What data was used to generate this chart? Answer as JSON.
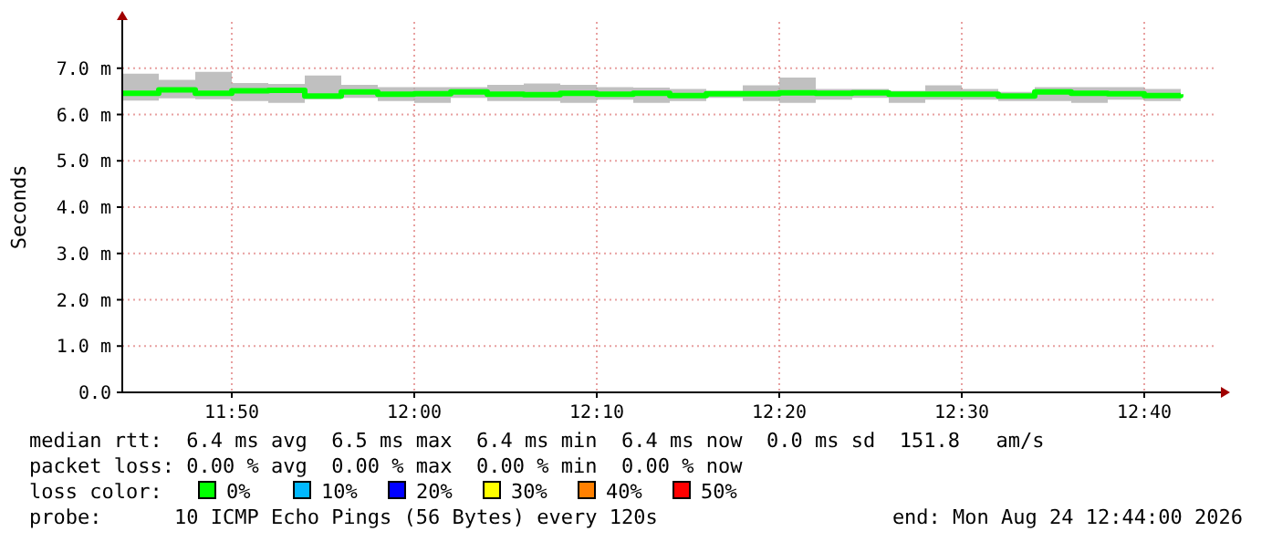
{
  "chart_data": {
    "type": "step",
    "ylabel": "Seconds",
    "legend_title": "loss color:",
    "legend": "bottom",
    "grid": true,
    "line_style": "solid",
    "x": [
      "2026-08-24T11:44",
      "2026-08-24T11:46",
      "2026-08-24T11:48",
      "2026-08-24T11:50",
      "2026-08-24T11:52",
      "2026-08-24T11:54",
      "2026-08-24T11:56",
      "2026-08-24T11:58",
      "2026-08-24T12:00",
      "2026-08-24T12:02",
      "2026-08-24T12:04",
      "2026-08-24T12:06",
      "2026-08-24T12:08",
      "2026-08-24T12:10",
      "2026-08-24T12:12",
      "2026-08-24T12:14",
      "2026-08-24T12:16",
      "2026-08-24T12:18",
      "2026-08-24T12:20",
      "2026-08-24T12:22",
      "2026-08-24T12:24",
      "2026-08-24T12:26",
      "2026-08-24T12:28",
      "2026-08-24T12:30",
      "2026-08-24T12:32",
      "2026-08-24T12:34",
      "2026-08-24T12:36",
      "2026-08-24T12:38",
      "2026-08-24T12:40",
      "2026-08-24T12:42"
    ],
    "xlim": [
      "2026-08-24T11:44",
      "2026-08-24T12:44"
    ],
    "xticks": [
      {
        "value": "2026-08-24T11:50",
        "label": "11:50"
      },
      {
        "value": "2026-08-24T12:00",
        "label": "12:00"
      },
      {
        "value": "2026-08-24T12:10",
        "label": "12:10"
      },
      {
        "value": "2026-08-24T12:20",
        "label": "12:20"
      },
      {
        "value": "2026-08-24T12:30",
        "label": "12:30"
      },
      {
        "value": "2026-08-24T12:40",
        "label": "12:40"
      }
    ],
    "ylim": [
      0,
      8
    ],
    "yticks": [
      {
        "value": 0,
        "label": "0.0"
      },
      {
        "value": 1,
        "label": "1.0 m"
      },
      {
        "value": 2,
        "label": "2.0 m"
      },
      {
        "value": 3,
        "label": "3.0 m"
      },
      {
        "value": 4,
        "label": "4.0 m"
      },
      {
        "value": 5,
        "label": "5.0 m"
      },
      {
        "value": 6,
        "label": "6.0 m"
      },
      {
        "value": 7,
        "label": "7.0 m"
      }
    ],
    "series": [
      {
        "name": "0%",
        "color": "#00ff00",
        "values": [
          6.46,
          6.53,
          6.46,
          6.51,
          6.52,
          6.4,
          6.49,
          6.44,
          6.45,
          6.49,
          6.44,
          6.43,
          6.46,
          6.44,
          6.46,
          6.41,
          6.45,
          6.45,
          6.47,
          6.46,
          6.47,
          6.44,
          6.44,
          6.44,
          6.4,
          6.49,
          6.46,
          6.45,
          6.41,
          6.44
        ],
        "lower": [
          6.3,
          6.35,
          6.33,
          6.29,
          6.25,
          6.33,
          6.36,
          6.29,
          6.25,
          6.36,
          6.29,
          6.29,
          6.25,
          6.32,
          6.25,
          6.29,
          6.36,
          6.29,
          6.25,
          6.32,
          6.36,
          6.25,
          6.32,
          6.32,
          6.29,
          6.29,
          6.25,
          6.32,
          6.29,
          6.29
        ],
        "upper": [
          6.88,
          6.75,
          6.92,
          6.68,
          6.66,
          6.84,
          6.64,
          6.59,
          6.59,
          6.59,
          6.64,
          6.67,
          6.64,
          6.59,
          6.58,
          6.55,
          6.51,
          6.63,
          6.8,
          6.55,
          6.55,
          6.51,
          6.63,
          6.55,
          6.49,
          6.59,
          6.59,
          6.59,
          6.55,
          6.55
        ]
      },
      {
        "name": "10%",
        "color": "#00b8ff",
        "values": [
          null,
          null,
          null,
          null,
          null,
          null,
          null,
          null,
          null,
          null,
          null,
          null,
          null,
          null,
          null,
          null,
          null,
          null,
          null,
          null,
          null,
          null,
          null,
          null,
          null,
          null,
          null,
          null,
          null,
          null
        ]
      },
      {
        "name": "20%",
        "color": "#0000ff",
        "values": [
          null,
          null,
          null,
          null,
          null,
          null,
          null,
          null,
          null,
          null,
          null,
          null,
          null,
          null,
          null,
          null,
          null,
          null,
          null,
          null,
          null,
          null,
          null,
          null,
          null,
          null,
          null,
          null,
          null,
          null
        ]
      },
      {
        "name": "30%",
        "color": "#ffff00",
        "values": [
          null,
          null,
          null,
          null,
          null,
          null,
          null,
          null,
          null,
          null,
          null,
          null,
          null,
          null,
          null,
          null,
          null,
          null,
          null,
          null,
          null,
          null,
          null,
          null,
          null,
          null,
          null,
          null,
          null,
          null
        ]
      },
      {
        "name": "40%",
        "color": "#ff8000",
        "values": [
          null,
          null,
          null,
          null,
          null,
          null,
          null,
          null,
          null,
          null,
          null,
          null,
          null,
          null,
          null,
          null,
          null,
          null,
          null,
          null,
          null,
          null,
          null,
          null,
          null,
          null,
          null,
          null,
          null,
          null
        ]
      },
      {
        "name": "50%",
        "color": "#ff0000",
        "values": [
          null,
          null,
          null,
          null,
          null,
          null,
          null,
          null,
          null,
          null,
          null,
          null,
          null,
          null,
          null,
          null,
          null,
          null,
          null,
          null,
          null,
          null,
          null,
          null,
          null,
          null,
          null,
          null,
          null,
          null
        ]
      }
    ],
    "annotations": [
      "median rtt:  6.4 ms avg  6.5 ms max  6.4 ms min  6.4 ms now  0.0 ms sd  151.8   am/s",
      "packet loss: 0.00 % avg  0.00 % max  0.00 % min  0.00 % now",
      "probe:      10 ICMP Echo Pings (56 Bytes) every 120s",
      "end: Mon Aug 24 12:44:00 2026"
    ]
  }
}
